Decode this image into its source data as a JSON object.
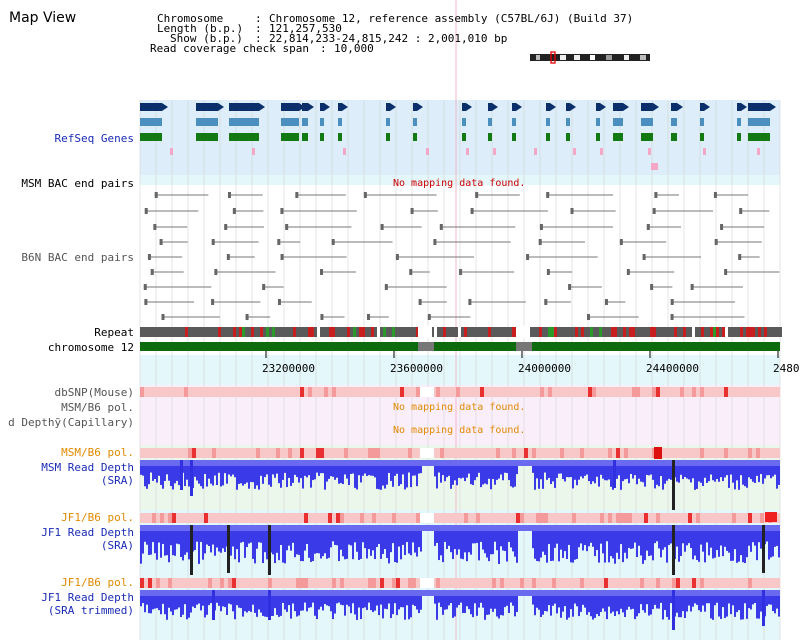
{
  "page": {
    "title": "Map View"
  },
  "header": {
    "chromosome": {
      "label": "Chromosome",
      "value": "Chromosome 12, reference assembly (C57BL/6J) (Build 37)"
    },
    "length": {
      "label": "Length (b.p.)",
      "value": "121,257,530"
    },
    "show": {
      "label": "Show (b.p.)",
      "value": "22,814,233-24,815,242 : 2,001,010 bp"
    },
    "coverage": {
      "label": "Read coverage check span",
      "value": "10,000"
    }
  },
  "tracks": {
    "refseq": "RefSeq Genes",
    "msm_bac": "MSM BAC end pairs",
    "b6n_bac": "B6N BAC end pairs",
    "repeat": "Repeat",
    "chromosome": "chromosome 12",
    "dbsnp": "dbSNP(Mouse)",
    "msm_b6_pol_a": "MSM/B6 pol.",
    "read_depth_capillary": "d Depthỹ(Capillary)",
    "msm_b6_pol_b": "MSM/B6 pol.",
    "msm_read_depth": "MSM Read Depth",
    "msm_read_depth_sub": "(SRA)",
    "jf1_b6_pol_a": "JF1/B6 pol.",
    "jf1_read_depth": "JF1 Read Depth",
    "jf1_read_depth_sub": "(SRA)",
    "jf1_b6_pol_b": "JF1/B6 pol.",
    "jf1_trim_depth": "JF1 Read Depth",
    "jf1_trim_depth_sub": "(SRA trimmed)"
  },
  "messages": {
    "no_data_msm_bac": "No mapping data found.",
    "no_data_msm_pol": "No mapping data found.",
    "no_data_capillary": "No mapping data found."
  },
  "axis": {
    "ticks": [
      "23200000",
      "23600000",
      "24000000",
      "24400000",
      "2480"
    ]
  },
  "colors": {
    "gene_dark": "#0b2f6b",
    "gene_mid": "#4a8fc0",
    "gene_green": "#137a13",
    "chromosome_green": "#0d6b0d",
    "refseq_bg": "#ddeefa",
    "depth_blue": "#3a3ae8",
    "label_blue": "#1a2bb5",
    "label_orange": "#e08a00",
    "no_data_red": "#cc0000"
  }
}
